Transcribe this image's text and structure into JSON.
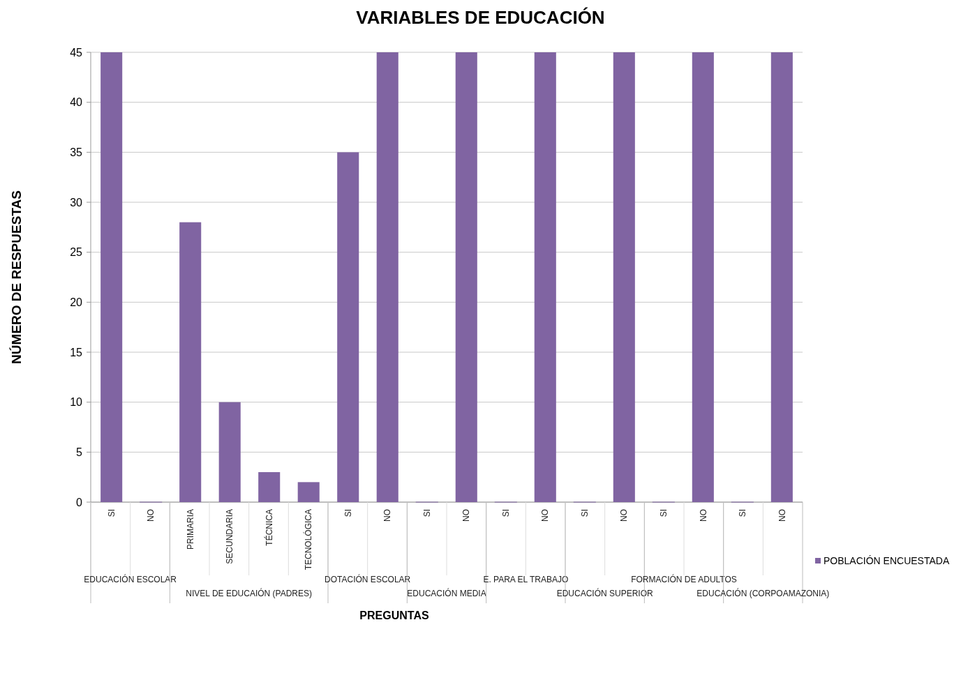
{
  "chart_data": {
    "type": "bar",
    "title": "VARIABLES DE EDUCACIÓN",
    "xlabel": "PREGUNTAS",
    "ylabel": "NÚMERO DE RESPUESTAS",
    "categories": [
      "SI",
      "NO",
      "PRIMARIA",
      "SECUNDARIA",
      "TÉCNICA",
      "TECNOLÓGICA",
      "SI",
      "NO",
      "SI",
      "NO",
      "SI",
      "NO",
      "SI",
      "NO",
      "SI",
      "NO",
      "SI",
      "NO"
    ],
    "series": [
      {
        "name": "POBLACIÓN ENCUESTADA",
        "color": "#8064a2",
        "values": [
          45,
          0,
          28,
          10,
          3,
          2,
          35,
          45,
          0,
          45,
          0,
          45,
          0,
          45,
          0,
          45,
          0,
          45
        ]
      }
    ],
    "ylim": [
      0,
      45
    ],
    "yticks": [
      0,
      5,
      10,
      15,
      20,
      25,
      30,
      35,
      40,
      45
    ],
    "grid": "y",
    "legend": "right",
    "annotations": [
      "EDUCACIÓN ESCOLAR",
      "NIVEL DE EDUCAIÓN (PADRES)",
      "DOTACIÓN ESCOLAR",
      "EDUCACIÓN MEDIA",
      "E. PARA EL TRABAJO",
      "EDUCACIÓN SUPERIOR",
      "FORMACIÓN DE ADULTOS",
      "EDUCACIÓN (CORPOAMAZONIA)"
    ]
  }
}
